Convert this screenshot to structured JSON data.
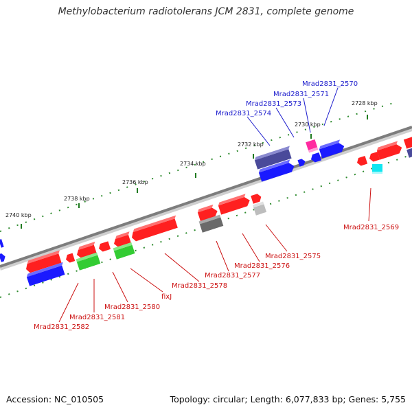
{
  "title": "Methylobacterium radiotolerans JCM 2831, complete genome",
  "footer": {
    "accession": "Accession: NC_010505",
    "summary": "Topology: circular; Length: 6,077,833 bp; Genes: 5,755"
  },
  "colors": {
    "backbone": "#808080",
    "tick": "#2e8b2e",
    "label_top": "#1a1acc",
    "label_bottom": "#cc1111",
    "red": "#ff2020",
    "blue": "#1a1aff",
    "green": "#33cc33",
    "navy": "#4a4a9a",
    "gray": "#6a6a6a",
    "lightgray": "#bdbdbd",
    "magenta": "#ff2aa0",
    "cyan": "#10e6f0"
  },
  "ruler_labels": [
    "2740 kbp",
    "2738 kbp",
    "2736 kbp",
    "2734 kbp",
    "2732 kbp",
    "2730 kbp",
    "2728 kbp"
  ],
  "top_labels": [
    "Mrad2831_2570",
    "Mrad2831_2571",
    "Mrad2831_2573",
    "Mrad2831_2574"
  ],
  "bottom_labels": [
    "Mrad2831_2569",
    "Mrad2831_2575",
    "Mrad2831_2576",
    "Mrad2831_2577",
    "Mrad2831_2578",
    "fixJ",
    "Mrad2831_2580",
    "Mrad2831_2581",
    "Mrad2831_2582"
  ]
}
